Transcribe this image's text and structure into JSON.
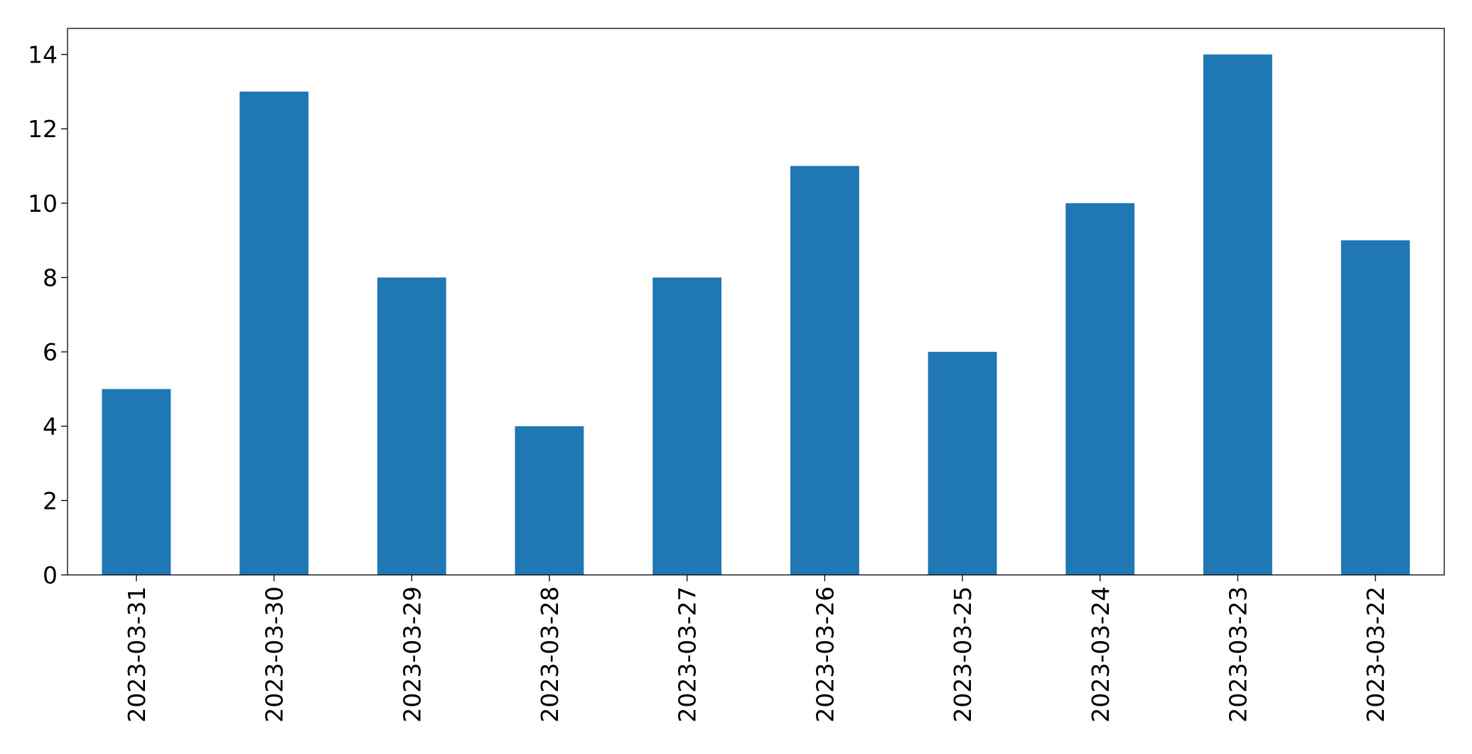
{
  "chart_data": {
    "type": "bar",
    "categories": [
      "2023-03-31",
      "2023-03-30",
      "2023-03-29",
      "2023-03-28",
      "2023-03-27",
      "2023-03-26",
      "2023-03-25",
      "2023-03-24",
      "2023-03-23",
      "2023-03-22"
    ],
    "values": [
      5,
      13,
      8,
      4,
      8,
      11,
      6,
      10,
      14,
      9
    ],
    "color": "#1f77b4",
    "ylim": [
      0,
      14.7
    ],
    "yticks": [
      0,
      2,
      4,
      6,
      8,
      10,
      12,
      14
    ],
    "grid": false
  }
}
